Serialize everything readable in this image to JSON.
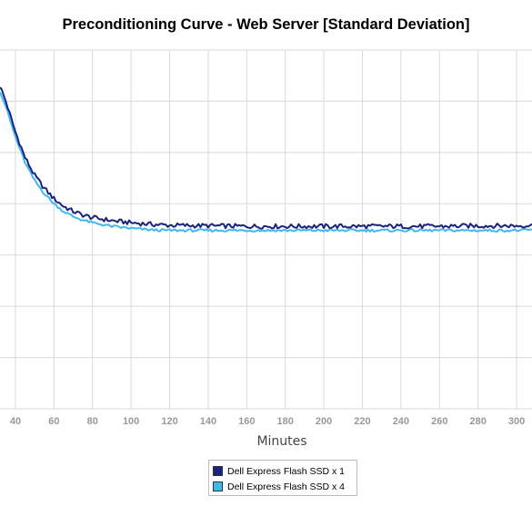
{
  "chart_data": {
    "type": "line",
    "title": "Preconditioning Curve - Web Server [Standard Deviation]",
    "xlabel": "Minutes",
    "ylabel": "",
    "x_tick_labels": [
      "40",
      "60",
      "80",
      "100",
      "120",
      "140",
      "160",
      "180",
      "200",
      "220",
      "240",
      "260",
      "280",
      "300"
    ],
    "xlim": [
      32,
      308
    ],
    "ylim": [
      0,
      7
    ],
    "grid": true,
    "legend_position": "bottom-center",
    "series": [
      {
        "name": "Dell Express Flash SSD x 1",
        "color": "#1a237e",
        "x": [
          32,
          35,
          40,
          45,
          50,
          55,
          60,
          65,
          70,
          75,
          80,
          90,
          100,
          110,
          120,
          140,
          160,
          180,
          200,
          220,
          240,
          260,
          280,
          300,
          308
        ],
        "values": [
          6.3,
          6.0,
          5.4,
          4.9,
          4.55,
          4.3,
          4.1,
          3.95,
          3.85,
          3.78,
          3.73,
          3.67,
          3.63,
          3.6,
          3.58,
          3.57,
          3.56,
          3.56,
          3.56,
          3.56,
          3.56,
          3.56,
          3.57,
          3.57,
          3.58
        ]
      },
      {
        "name": "Dell Express Flash SSD x 4",
        "color": "#40b8ee",
        "x": [
          32,
          35,
          40,
          45,
          50,
          55,
          60,
          65,
          70,
          75,
          80,
          90,
          100,
          110,
          120,
          140,
          160,
          180,
          200,
          220,
          240,
          260,
          280,
          300,
          308
        ],
        "values": [
          6.2,
          5.9,
          5.3,
          4.8,
          4.45,
          4.2,
          4.0,
          3.85,
          3.75,
          3.68,
          3.63,
          3.56,
          3.52,
          3.49,
          3.48,
          3.48,
          3.48,
          3.48,
          3.48,
          3.48,
          3.48,
          3.48,
          3.48,
          3.48,
          3.49
        ]
      }
    ]
  }
}
